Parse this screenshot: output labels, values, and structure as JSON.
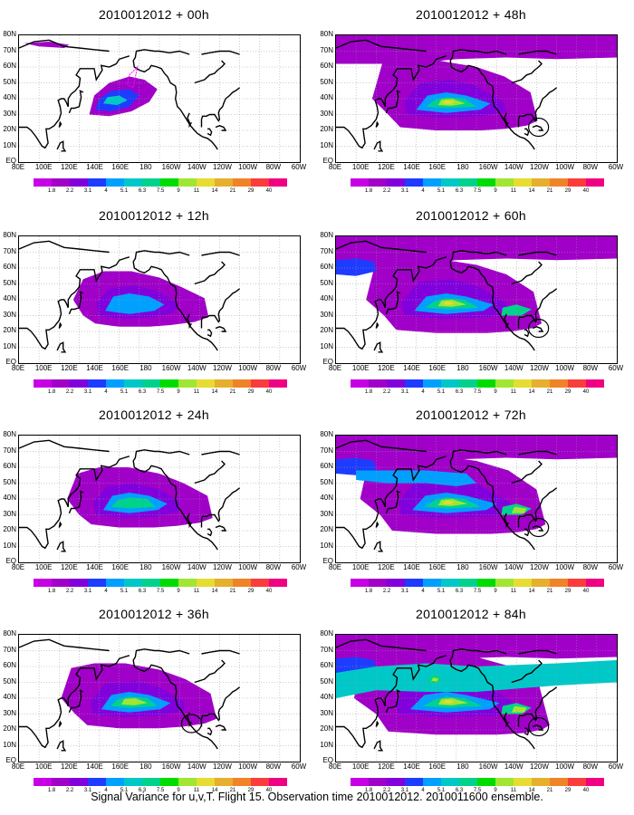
{
  "panels": [
    {
      "title": "2010012012 + 00h",
      "intensity": 0
    },
    {
      "title": "2010012012 + 48h",
      "intensity": 4
    },
    {
      "title": "2010012012 + 12h",
      "intensity": 1
    },
    {
      "title": "2010012012 + 60h",
      "intensity": 5
    },
    {
      "title": "2010012012 + 24h",
      "intensity": 2
    },
    {
      "title": "2010012012 + 72h",
      "intensity": 6
    },
    {
      "title": "2010012012 + 36h",
      "intensity": 3
    },
    {
      "title": "2010012012 + 84h",
      "intensity": 7
    }
  ],
  "lat_labels": [
    "80N",
    "70N",
    "60N",
    "50N",
    "40N",
    "30N",
    "20N",
    "10N",
    "EQ"
  ],
  "lon_labels": [
    "80E",
    "100E",
    "120E",
    "140E",
    "160E",
    "180",
    "160W",
    "140W",
    "120W",
    "100W",
    "80W",
    "60W"
  ],
  "colorbar": {
    "levels": [
      "1.8",
      "2.2",
      "3.1",
      "4",
      "5.1",
      "6.3",
      "7.5",
      "9",
      "11",
      "14",
      "21",
      "29",
      "40"
    ],
    "colors": [
      "#a000c8",
      "#8200dc",
      "#1e3cff",
      "#00a0ff",
      "#00c8c8",
      "#00d28c",
      "#00dc00",
      "#a0e632",
      "#e6dc32",
      "#e6af2d",
      "#f08228",
      "#fa3c3c",
      "#f00082"
    ]
  },
  "footer": "Signal Variance for u,v,T. Flight 15. Observation time 2010012012. 2010011600 ensemble."
}
